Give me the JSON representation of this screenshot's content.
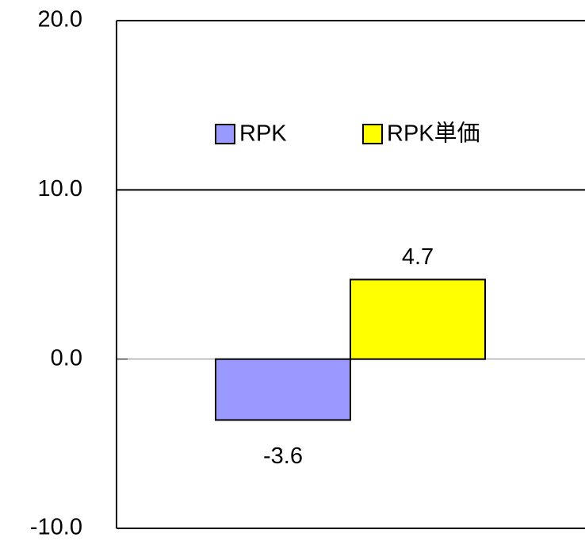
{
  "chart_data": {
    "type": "bar",
    "categories": [
      null
    ],
    "series": [
      {
        "name": "RPK",
        "color": "#9999ff",
        "values": [
          -3.6
        ]
      },
      {
        "name": "RPK単価",
        "color": "#ffff00",
        "values": [
          4.7
        ]
      }
    ],
    "ylim": [
      -10,
      20
    ],
    "yticks": [
      {
        "value": -10,
        "label": "-10.0"
      },
      {
        "value": 0,
        "label": "0.0"
      },
      {
        "value": 10,
        "label": "10.0"
      },
      {
        "value": 20,
        "label": "20.0"
      }
    ],
    "grid": true
  }
}
